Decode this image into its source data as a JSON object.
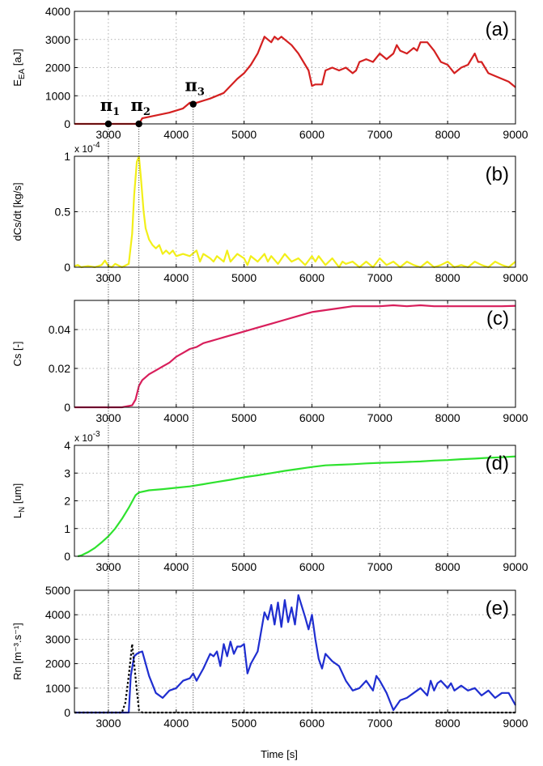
{
  "xlabel": "Time  [s]",
  "vlines_x": [
    3000,
    3450,
    4250
  ],
  "pi_markers": [
    {
      "name": "π",
      "sub": "1",
      "x": 3000,
      "y": 0
    },
    {
      "name": "π",
      "sub": "2",
      "x": 3450,
      "y": 0
    },
    {
      "name": "π",
      "sub": "3",
      "x": 4250,
      "y": 700
    }
  ],
  "chart_data": [
    {
      "type": "line",
      "panel_label": "(a)",
      "ylabel": "E",
      "ylabel_sub": "EA",
      "ylabel_unit": "[aJ]",
      "exponent": "",
      "xlim": [
        2500,
        9000
      ],
      "ylim": [
        0,
        4000
      ],
      "yticks": [
        0,
        1000,
        2000,
        3000,
        4000
      ],
      "ytick_labels": [
        "0",
        "1000",
        "2000",
        "3000",
        "4000"
      ],
      "xticks": [
        3000,
        4000,
        5000,
        6000,
        7000,
        8000,
        9000
      ],
      "xtick_labels": [
        "3000",
        "4000",
        "5000",
        "6000",
        "7000",
        "8000",
        "9000"
      ],
      "grid": true,
      "color": "#d42020",
      "series": [
        {
          "x": [
            2500,
            3450,
            3500,
            3700,
            3900,
            4100,
            4200,
            4300,
            4500,
            4700,
            4900,
            5000,
            5100,
            5200,
            5250,
            5300,
            5350,
            5400,
            5450,
            5500,
            5550,
            5600,
            5700,
            5800,
            5900,
            5950,
            6000,
            6050,
            6150,
            6200,
            6300,
            6400,
            6500,
            6600,
            6650,
            6700,
            6800,
            6900,
            7000,
            7100,
            7200,
            7250,
            7300,
            7400,
            7500,
            7550,
            7600,
            7700,
            7800,
            7900,
            8000,
            8100,
            8200,
            8300,
            8400,
            8450,
            8500,
            8600,
            8700,
            8800,
            8900,
            9000
          ],
          "y": [
            0,
            0,
            200,
            300,
            400,
            550,
            750,
            750,
            900,
            1100,
            1600,
            1800,
            2100,
            2500,
            2800,
            3100,
            3000,
            2900,
            3100,
            3000,
            3100,
            3000,
            2800,
            2500,
            2100,
            1900,
            1350,
            1400,
            1400,
            1900,
            2000,
            1900,
            2000,
            1800,
            1900,
            2200,
            2300,
            2200,
            2500,
            2300,
            2500,
            2800,
            2600,
            2500,
            2700,
            2600,
            2900,
            2900,
            2600,
            2200,
            2100,
            1800,
            2000,
            2100,
            2500,
            2200,
            2200,
            1800,
            1700,
            1600,
            1500,
            1300
          ]
        }
      ]
    },
    {
      "type": "line",
      "panel_label": "(b)",
      "ylabel": "dCs/dt",
      "ylabel_sub": "",
      "ylabel_unit": "[kg/s]",
      "exponent": "x 10",
      "exponent_power": "-4",
      "xlim": [
        2500,
        9000
      ],
      "ylim": [
        0,
        1
      ],
      "yticks": [
        0,
        0.5,
        1
      ],
      "ytick_labels": [
        "0",
        "0.5",
        "1"
      ],
      "xticks": [
        3000,
        4000,
        5000,
        6000,
        7000,
        8000,
        9000
      ],
      "xtick_labels": [
        "3000",
        "4000",
        "5000",
        "6000",
        "7000",
        "8000",
        "9000"
      ],
      "grid": true,
      "color": "#f2ef19",
      "series": [
        {
          "x": [
            2500,
            2550,
            2600,
            2700,
            2800,
            2900,
            2950,
            3000,
            3050,
            3100,
            3200,
            3300,
            3350,
            3380,
            3420,
            3450,
            3480,
            3520,
            3550,
            3600,
            3650,
            3700,
            3750,
            3800,
            3850,
            3900,
            3950,
            4000,
            4100,
            4200,
            4300,
            4350,
            4400,
            4500,
            4550,
            4600,
            4700,
            4750,
            4800,
            4900,
            5000,
            5050,
            5100,
            5200,
            5300,
            5350,
            5400,
            5500,
            5600,
            5700,
            5800,
            5900,
            6000,
            6050,
            6100,
            6200,
            6300,
            6400,
            6450,
            6500,
            6600,
            6700,
            6800,
            6900,
            7000,
            7100,
            7200,
            7300,
            7400,
            7500,
            7600,
            7700,
            7800,
            7900,
            8000,
            8100,
            8200,
            8300,
            8400,
            8500,
            8600,
            8700,
            8800,
            8900,
            9000
          ],
          "y": [
            0.01,
            0.02,
            0.0,
            0.01,
            0.0,
            0.02,
            0.06,
            0.01,
            0.0,
            0.03,
            0.0,
            0.03,
            0.3,
            0.65,
            0.95,
            1.0,
            0.8,
            0.5,
            0.35,
            0.25,
            0.2,
            0.17,
            0.2,
            0.12,
            0.15,
            0.12,
            0.15,
            0.1,
            0.12,
            0.1,
            0.15,
            0.05,
            0.12,
            0.08,
            0.05,
            0.1,
            0.05,
            0.15,
            0.05,
            0.12,
            0.08,
            0.02,
            0.1,
            0.05,
            0.12,
            0.05,
            0.1,
            0.03,
            0.12,
            0.05,
            0.08,
            0.02,
            0.1,
            0.05,
            0.1,
            0.02,
            0.08,
            0.0,
            0.05,
            0.03,
            0.05,
            0.0,
            0.05,
            0.0,
            0.08,
            0.02,
            0.05,
            0.0,
            0.05,
            0.02,
            0.0,
            0.05,
            0.0,
            0.02,
            0.05,
            0.0,
            0.02,
            0.0,
            0.05,
            0.02,
            0.0,
            0.05,
            0.02,
            0.0,
            0.05
          ]
        }
      ]
    },
    {
      "type": "line",
      "panel_label": "(c)",
      "ylabel": "Cs",
      "ylabel_sub": "",
      "ylabel_unit": "[-]",
      "exponent": "",
      "xlim": [
        2500,
        9000
      ],
      "ylim": [
        0,
        0.055
      ],
      "yticks": [
        0,
        0.02,
        0.04
      ],
      "ytick_labels": [
        "0",
        "0.02",
        "0.04"
      ],
      "xticks": [
        3000,
        4000,
        5000,
        6000,
        7000,
        8000,
        9000
      ],
      "xtick_labels": [
        "3000",
        "4000",
        "5000",
        "6000",
        "7000",
        "8000",
        "9000"
      ],
      "grid": true,
      "color": "#d81e5b",
      "series": [
        {
          "x": [
            2500,
            3200,
            3350,
            3400,
            3450,
            3500,
            3600,
            3700,
            3800,
            3900,
            4000,
            4100,
            4200,
            4300,
            4400,
            4500,
            4600,
            4700,
            4800,
            4900,
            5000,
            5200,
            5400,
            5600,
            5800,
            6000,
            6200,
            6400,
            6600,
            6800,
            7000,
            7200,
            7400,
            7600,
            7800,
            8000,
            8200,
            8400,
            8600,
            8800,
            9000
          ],
          "y": [
            0,
            0,
            0.001,
            0.004,
            0.011,
            0.014,
            0.017,
            0.019,
            0.021,
            0.023,
            0.026,
            0.028,
            0.03,
            0.031,
            0.033,
            0.034,
            0.035,
            0.036,
            0.037,
            0.038,
            0.039,
            0.041,
            0.043,
            0.045,
            0.047,
            0.049,
            0.05,
            0.051,
            0.052,
            0.052,
            0.052,
            0.0525,
            0.052,
            0.0525,
            0.052,
            0.052,
            0.052,
            0.052,
            0.052,
            0.052,
            0.0522
          ]
        }
      ]
    },
    {
      "type": "line",
      "panel_label": "(d)",
      "ylabel": "L",
      "ylabel_sub": "N",
      "ylabel_unit": "[um]",
      "exponent": "x 10",
      "exponent_power": "-3",
      "xlim": [
        2500,
        9000
      ],
      "ylim": [
        0,
        4
      ],
      "yticks": [
        0,
        1,
        2,
        3,
        4
      ],
      "ytick_labels": [
        "0",
        "1",
        "2",
        "3",
        "4"
      ],
      "xticks": [
        3000,
        4000,
        5000,
        6000,
        7000,
        8000,
        9000
      ],
      "xtick_labels": [
        "3000",
        "4000",
        "5000",
        "6000",
        "7000",
        "8000",
        "9000"
      ],
      "grid": true,
      "color": "#2ee22e",
      "series": [
        {
          "x": [
            2550,
            2600,
            2700,
            2800,
            2900,
            3000,
            3100,
            3200,
            3300,
            3400,
            3450,
            3600,
            3800,
            4000,
            4200,
            4400,
            4600,
            4800,
            5000,
            5200,
            5400,
            5600,
            5800,
            6000,
            6200,
            6400,
            6600,
            6800,
            7000,
            7200,
            7400,
            7600,
            7800,
            8000,
            8200,
            8400,
            8600,
            8800,
            9000
          ],
          "y": [
            0,
            0.03,
            0.15,
            0.3,
            0.5,
            0.72,
            1.0,
            1.35,
            1.75,
            2.2,
            2.3,
            2.38,
            2.42,
            2.47,
            2.52,
            2.6,
            2.68,
            2.76,
            2.85,
            2.92,
            3.0,
            3.08,
            3.15,
            3.22,
            3.28,
            3.3,
            3.32,
            3.35,
            3.37,
            3.38,
            3.4,
            3.42,
            3.45,
            3.47,
            3.5,
            3.52,
            3.55,
            3.57,
            3.6
          ]
        }
      ]
    },
    {
      "type": "line",
      "panel_label": "(e)",
      "ylabel": "Rn",
      "ylabel_sub": "",
      "ylabel_unit": "[m⁻³.s⁻¹]",
      "exponent": "",
      "xlim": [
        2500,
        9000
      ],
      "ylim": [
        0,
        5000
      ],
      "yticks": [
        0,
        1000,
        2000,
        3000,
        4000,
        5000
      ],
      "ytick_labels": [
        "0",
        "1000",
        "2000",
        "3000",
        "4000",
        "5000"
      ],
      "xticks": [
        3000,
        4000,
        5000,
        6000,
        7000,
        8000,
        9000
      ],
      "xtick_labels": [
        "3000",
        "4000",
        "5000",
        "6000",
        "7000",
        "8000",
        "9000"
      ],
      "grid": true,
      "color": "#1f2ed0",
      "series": [
        {
          "x": [
            2500,
            3300,
            3330,
            3380,
            3420,
            3450,
            3500,
            3600,
            3700,
            3800,
            3900,
            4000,
            4100,
            4200,
            4250,
            4300,
            4400,
            4500,
            4550,
            4600,
            4650,
            4700,
            4750,
            4800,
            4850,
            4900,
            4950,
            5000,
            5050,
            5100,
            5200,
            5300,
            5350,
            5400,
            5450,
            5500,
            5550,
            5600,
            5650,
            5700,
            5750,
            5800,
            5900,
            5950,
            6000,
            6050,
            6100,
            6150,
            6200,
            6300,
            6400,
            6500,
            6600,
            6700,
            6800,
            6900,
            6950,
            7000,
            7100,
            7200,
            7300,
            7400,
            7500,
            7600,
            7700,
            7750,
            7800,
            7850,
            7900,
            8000,
            8050,
            8100,
            8200,
            8300,
            8400,
            8500,
            8600,
            8700,
            8800,
            8900,
            9000
          ],
          "y": [
            0,
            0,
            1500,
            2300,
            2400,
            2450,
            2500,
            1500,
            800,
            600,
            900,
            1000,
            1300,
            1400,
            1600,
            1300,
            1800,
            2400,
            2300,
            2500,
            1900,
            2800,
            2300,
            2900,
            2400,
            2700,
            2700,
            2800,
            1600,
            2000,
            2500,
            4100,
            3800,
            4400,
            3600,
            4500,
            3500,
            4600,
            3700,
            4300,
            3600,
            4800,
            3900,
            3400,
            4000,
            3000,
            2200,
            1800,
            2400,
            2100,
            1900,
            1300,
            900,
            1000,
            1300,
            900,
            1500,
            1300,
            800,
            100,
            500,
            600,
            800,
            1000,
            700,
            1300,
            900,
            1200,
            1300,
            1000,
            1200,
            900,
            1100,
            900,
            1000,
            700,
            900,
            600,
            800,
            800,
            300
          ]
        },
        {
          "x": [
            2500,
            3200,
            3250,
            3300,
            3350,
            3380,
            3420,
            3450,
            3500,
            9000
          ],
          "y": [
            0,
            0,
            400,
            1500,
            2800,
            2000,
            900,
            100,
            0,
            0
          ],
          "dotted": true,
          "color": "#000000"
        }
      ]
    }
  ]
}
